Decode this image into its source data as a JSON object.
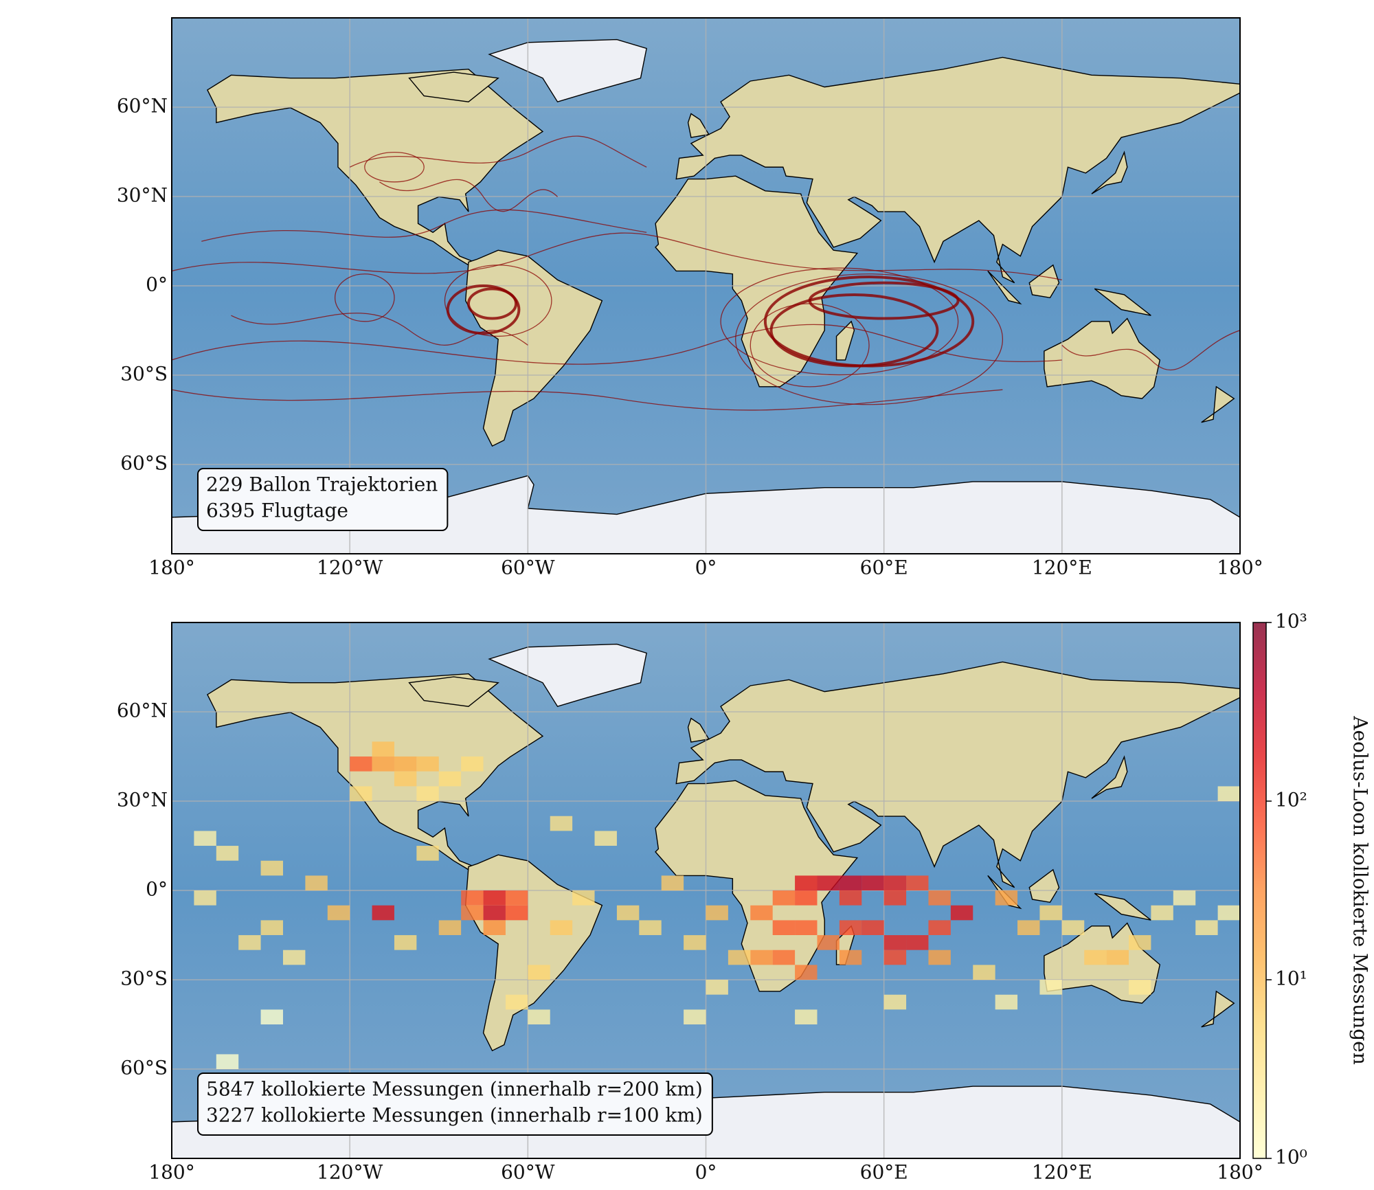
{
  "panels": [
    {
      "xlim": [
        -180,
        180
      ],
      "ylim": [
        -90,
        90
      ],
      "xticks": [
        {
          "value": -180,
          "label": "180°"
        },
        {
          "value": -120,
          "label": "120°W"
        },
        {
          "value": -60,
          "label": "60°W"
        },
        {
          "value": 0,
          "label": "0°"
        },
        {
          "value": 60,
          "label": "60°E"
        },
        {
          "value": 120,
          "label": "120°E"
        },
        {
          "value": 180,
          "label": "180°"
        }
      ],
      "yticks": [
        {
          "value": 60,
          "label": "60°N"
        },
        {
          "value": 30,
          "label": "30°N"
        },
        {
          "value": 0,
          "label": "0°"
        },
        {
          "value": -30,
          "label": "30°S"
        },
        {
          "value": -60,
          "label": "60°S"
        }
      ],
      "annotation": [
        "229 Ballon Trajektorien",
        "6395 Flugtage"
      ]
    },
    {
      "xlim": [
        -180,
        180
      ],
      "ylim": [
        -90,
        90
      ],
      "xticks": [
        {
          "value": -180,
          "label": "180°"
        },
        {
          "value": -120,
          "label": "120°W"
        },
        {
          "value": -60,
          "label": "60°W"
        },
        {
          "value": 0,
          "label": "0°"
        },
        {
          "value": 60,
          "label": "60°E"
        },
        {
          "value": 120,
          "label": "120°E"
        },
        {
          "value": 180,
          "label": "180°"
        }
      ],
      "yticks": [
        {
          "value": 60,
          "label": "60°N"
        },
        {
          "value": 30,
          "label": "30°N"
        },
        {
          "value": 0,
          "label": "0°"
        },
        {
          "value": -30,
          "label": "30°S"
        },
        {
          "value": -60,
          "label": "60°S"
        }
      ],
      "annotation": [
        "5847 kollokierte Messungen (innerhalb r=200 km)",
        "3227 kollokierte Messungen (innerhalb r=100 km)"
      ],
      "cells": {
        "lon": [
          -75,
          -75,
          -67.5,
          -82.5,
          -82.5,
          -67.5,
          -75,
          -112.5,
          30,
          37.5,
          45,
          52.5,
          60,
          67.5,
          22.5,
          30,
          45,
          60,
          75,
          82.5,
          15,
          22.5,
          30,
          45,
          52.5,
          60,
          67.5,
          75,
          60,
          37.5,
          15,
          22.5,
          30,
          45,
          75,
          -120,
          -112.5,
          -105,
          -97.5,
          -112.5,
          -105,
          -90,
          -82.5,
          -97.5,
          -120,
          -165,
          -150,
          -135,
          -127.5,
          -150,
          -172.5,
          -157.5,
          -142.5,
          -105,
          -90,
          -97.5,
          -52.5,
          -45,
          -30,
          -15,
          -22.5,
          -7.5,
          0,
          7.5,
          -37.5,
          -52.5,
          -60,
          -67.5,
          -60,
          0,
          97.5,
          105,
          112.5,
          120,
          127.5,
          135,
          142.5,
          150,
          157.5,
          165,
          172.5,
          142.5,
          112.5,
          90,
          97.5,
          60,
          30,
          -7.5,
          172.5,
          -172.5,
          -150,
          -165
        ],
        "lat": [
          -10,
          -5,
          -10,
          -5,
          -10,
          -5,
          -15,
          -10,
          0,
          0,
          0,
          0,
          0,
          0,
          -5,
          -5,
          -5,
          -5,
          -5,
          -10,
          -10,
          -15,
          -15,
          -15,
          -15,
          -20,
          -20,
          -15,
          -25,
          -20,
          -25,
          -25,
          -30,
          -25,
          -25,
          40,
          40,
          40,
          40,
          45,
          35,
          35,
          40,
          30,
          30,
          10,
          5,
          0,
          -10,
          -15,
          -5,
          -20,
          -25,
          -20,
          -15,
          10,
          -15,
          -5,
          -10,
          0,
          -15,
          -20,
          -10,
          -25,
          15,
          20,
          -30,
          -40,
          -45,
          -35,
          -5,
          -15,
          -10,
          -15,
          -25,
          -25,
          -20,
          -10,
          -5,
          -15,
          -10,
          -35,
          -35,
          -30,
          -40,
          -40,
          -45,
          -45,
          30,
          15,
          -45,
          -60
        ],
        "values": [
          300,
          200,
          80,
          60,
          40,
          60,
          30,
          200,
          200,
          300,
          300,
          250,
          150,
          80,
          50,
          80,
          100,
          100,
          40,
          200,
          40,
          60,
          60,
          80,
          100,
          150,
          150,
          80,
          80,
          40,
          30,
          50,
          40,
          30,
          20,
          60,
          20,
          15,
          10,
          10,
          8,
          5,
          5,
          4,
          5,
          3,
          5,
          8,
          10,
          5,
          3,
          4,
          3,
          5,
          10,
          5,
          8,
          5,
          6,
          8,
          5,
          6,
          10,
          8,
          3,
          4,
          6,
          4,
          2,
          3,
          20,
          10,
          5,
          4,
          8,
          10,
          6,
          3,
          2,
          3,
          2,
          3,
          2,
          5,
          2,
          3,
          2,
          2,
          2,
          2,
          1,
          1
        ]
      }
    }
  ],
  "colorbar": {
    "label": "Aeolus-Loon kollokierte Messungen",
    "lim": [
      1,
      1000
    ],
    "log": true,
    "ticks": [
      {
        "value": 1,
        "label": "10⁰"
      },
      {
        "value": 10,
        "label": "10¹"
      },
      {
        "value": 100,
        "label": "10²"
      },
      {
        "value": 1000,
        "label": "10³"
      }
    ],
    "colors": [
      "#ffffcc",
      "#ffeda0",
      "#fed976",
      "#feb24c",
      "#fd8d3c",
      "#fc4e2a",
      "#e31a1c",
      "#bd0026",
      "#800026"
    ]
  }
}
